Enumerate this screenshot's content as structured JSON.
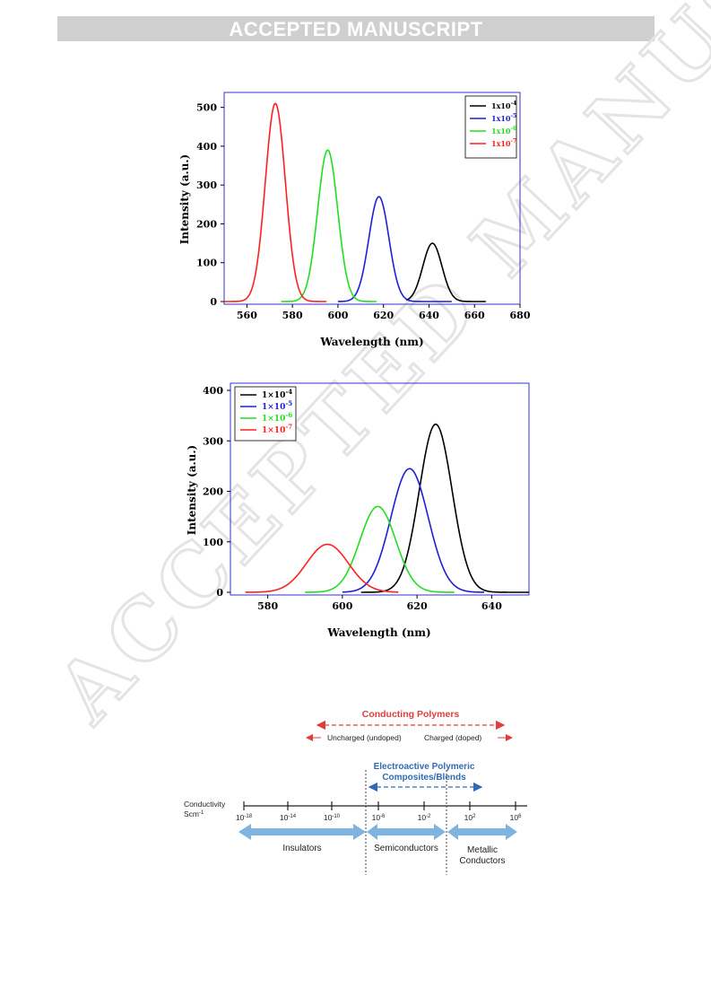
{
  "banner": "ACCEPTED MANUSCRIPT",
  "watermark": "ACCEPTED MANUSCRIPT",
  "colors": {
    "black": "#000000",
    "blue": "#1f1fd6",
    "green": "#22dd22",
    "red": "#ff2020",
    "frame": "#3333cc",
    "banner_bg": "#cfcfcf",
    "scale_red": "#e03c3c",
    "scale_blue": "#2e6bb3",
    "arrow_blue": "#7fb3e0"
  },
  "chart_data": [
    {
      "type": "line",
      "xlabel": "Wavelength (nm)",
      "ylabel": "Intensity (a.u.)",
      "xlim": [
        550,
        680
      ],
      "ylim": [
        0,
        520
      ],
      "xticks": [
        560,
        580,
        600,
        620,
        640,
        660,
        680
      ],
      "yticks": [
        0,
        100,
        200,
        300,
        400,
        500
      ],
      "legend_position": "top-right",
      "series": [
        {
          "name": "1x10",
          "exp": "-4",
          "color": "#000000",
          "peak_x": 641.5,
          "peak_y": 150,
          "width": 4.2,
          "x_start": 630,
          "x_end": 665
        },
        {
          "name": "1x10",
          "exp": "-5",
          "color": "#1f1fd6",
          "peak_x": 618,
          "peak_y": 270,
          "width": 4.4,
          "x_start": 600,
          "x_end": 650
        },
        {
          "name": "1x10",
          "exp": "-6",
          "color": "#22dd22",
          "peak_x": 595.5,
          "peak_y": 390,
          "width": 4.4,
          "x_start": 575,
          "x_end": 617
        },
        {
          "name": "1x10",
          "exp": "-7",
          "color": "#ff2020",
          "peak_x": 572.5,
          "peak_y": 510,
          "width": 4.4,
          "x_start": 550,
          "x_end": 595
        }
      ]
    },
    {
      "type": "line",
      "xlabel": "Wavelength (nm)",
      "ylabel": "Intensity (a.u.)",
      "xlim": [
        570,
        650
      ],
      "ylim": [
        0,
        400
      ],
      "xticks": [
        580,
        600,
        620,
        640
      ],
      "yticks": [
        0,
        100,
        200,
        300,
        400
      ],
      "legend_position": "top-left",
      "series": [
        {
          "name": "1×10",
          "exp": "-4",
          "color": "#000000",
          "peak_x": 625,
          "peak_y": 333,
          "width": 4.4,
          "x_start": 605,
          "x_end": 650
        },
        {
          "name": "1×10",
          "exp": "-5",
          "color": "#1f1fd6",
          "peak_x": 618,
          "peak_y": 245,
          "width": 5.0,
          "x_start": 600,
          "x_end": 638
        },
        {
          "name": "1×10",
          "exp": "-6",
          "color": "#22dd22",
          "peak_x": 609.5,
          "peak_y": 170,
          "width": 4.8,
          "x_start": 590,
          "x_end": 630
        },
        {
          "name": "1×10",
          "exp": "-7",
          "color": "#ff2020",
          "peak_x": 596,
          "peak_y": 95,
          "width": 5.6,
          "x_start": 574,
          "x_end": 615
        }
      ]
    }
  ],
  "scale": {
    "conducting_title": "Conducting Polymers",
    "uncharged": "Uncharged (undoped)",
    "charged": "Charged (doped)",
    "electroactive_line1": "Electroactive Polymeric",
    "electroactive_line2": "Composites/Blends",
    "conductivity_line1": "Conductivity",
    "conductivity_line2": "Scm",
    "conductivity_exp": "-1",
    "ticks": [
      {
        "base": "10",
        "exp": "-18"
      },
      {
        "base": "10",
        "exp": "-14"
      },
      {
        "base": "10",
        "exp": "-10"
      },
      {
        "base": "10",
        "exp": "-6"
      },
      {
        "base": "10",
        "exp": "-2"
      },
      {
        "base": "10",
        "exp": "2"
      },
      {
        "base": "10",
        "exp": "6"
      }
    ],
    "insulators": "Insulators",
    "semiconductors": "Semiconductors",
    "metallic_line1": "Metallic",
    "metallic_line2": "Conductors"
  }
}
